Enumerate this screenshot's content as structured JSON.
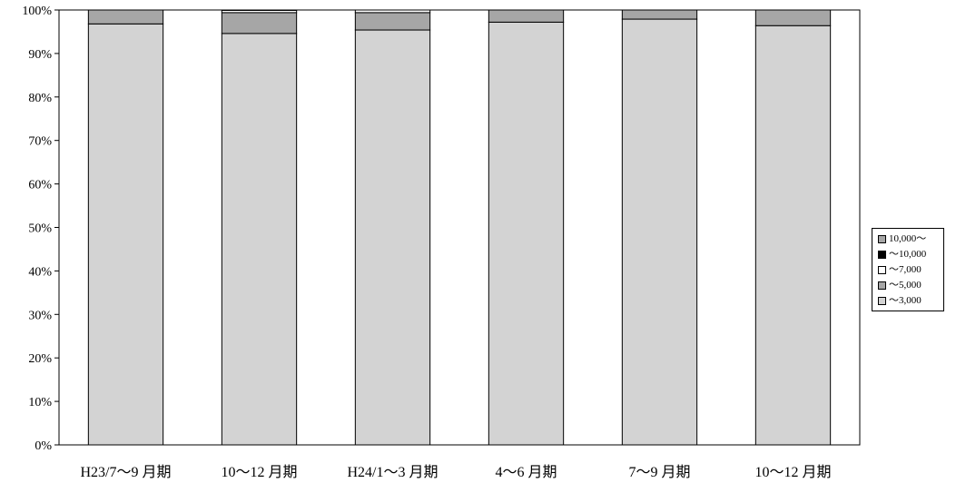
{
  "chart_data": {
    "type": "bar",
    "stacked": true,
    "percent": true,
    "categories": [
      "H23/7～9 月期",
      "10～12 月期",
      "H24/1～3 月期",
      "4～6 月期",
      "7～9 月期",
      "10～12 月期"
    ],
    "series": [
      {
        "name": "～3,000",
        "color": "#d3d3d3",
        "values": [
          96.8,
          94.6,
          95.4,
          97.2,
          97.9,
          96.4
        ]
      },
      {
        "name": "～5,000",
        "color": "#a6a6a6",
        "values": [
          3.2,
          4.8,
          4.0,
          2.8,
          2.1,
          3.6
        ]
      },
      {
        "name": "～7,000",
        "color": "#ffffff",
        "values": [
          0.0,
          0.5,
          0.6,
          0.0,
          0.0,
          0.0
        ]
      },
      {
        "name": "～10,000",
        "color": "#000000",
        "values": [
          0.0,
          0.1,
          0.0,
          0.0,
          0.0,
          0.0
        ]
      },
      {
        "name": "10,000～",
        "color": "#a6a6a6",
        "values": [
          0.0,
          0.0,
          0.0,
          0.0,
          0.0,
          0.0
        ]
      }
    ],
    "yticks": [
      "0%",
      "10%",
      "20%",
      "30%",
      "40%",
      "50%",
      "60%",
      "70%",
      "80%",
      "90%",
      "100%"
    ],
    "ylim": [
      0,
      100
    ],
    "grid": false,
    "legend_position": "right",
    "legend_order": [
      "10,000～",
      "～10,000",
      "～7,000",
      "～5,000",
      "～3,000"
    ],
    "title": "",
    "xlabel": "",
    "ylabel": ""
  }
}
